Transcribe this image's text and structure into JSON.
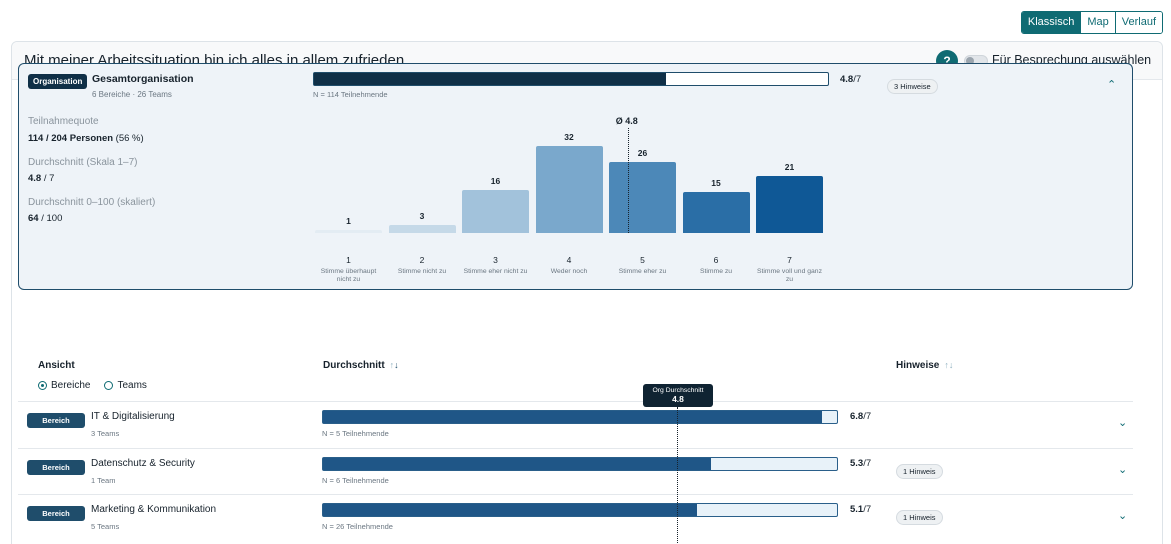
{
  "view_toggle": {
    "classic": "Klassisch",
    "map": "Map",
    "history": "Verlauf",
    "active": "Klassisch"
  },
  "question": "Mit meiner Arbeitssituation bin ich alles in allem zufrieden.",
  "help_symbol": "?",
  "discussion_toggle": {
    "label": "Für Besprechung auswählen",
    "on": false
  },
  "org": {
    "badge": "Organisation",
    "name": "Gesamtorganisation",
    "sub": "6 Bereiche · 26 Teams",
    "bar_fraction": 0.685,
    "n_label": "N = 114 Teilnehmende",
    "score": "4.8",
    "score_max": "/7",
    "hints": "3 Hinweise",
    "stats": [
      {
        "label": "Teilnahmequote",
        "value_bold": "114 / 204 Personen",
        "value_rest": " (56 %)"
      },
      {
        "label": "Durchschnitt (Skala 1–7)",
        "value_bold": "4.8",
        "value_rest": " / 7"
      },
      {
        "label": "Durchschnitt 0–100 (skaliert)",
        "value_bold": "64",
        "value_rest": " / 100"
      }
    ],
    "avg_label": "Ø 4.8",
    "avg_value": 4.8,
    "distribution": [
      {
        "num": "1",
        "count": 1,
        "label": "Stimme überhaupt nicht zu",
        "color": "#e3ecf3"
      },
      {
        "num": "2",
        "count": 3,
        "label": "Stimme nicht zu",
        "color": "#c5d9e8"
      },
      {
        "num": "3",
        "count": 16,
        "label": "Stimme eher nicht zu",
        "color": "#a2c2db"
      },
      {
        "num": "4",
        "count": 32,
        "label": "Weder noch",
        "color": "#7aa8cc"
      },
      {
        "num": "5",
        "count": 26,
        "label": "Stimme eher zu",
        "color": "#4c88b8"
      },
      {
        "num": "6",
        "count": 15,
        "label": "Stimme zu",
        "color": "#2a6ea6"
      },
      {
        "num": "7",
        "count": 21,
        "label": "Stimme voll und ganz zu",
        "color": "#0f5896"
      }
    ]
  },
  "table": {
    "col_view": "Ansicht",
    "col_avg": "Durchschnitt",
    "col_hints": "Hinweise",
    "sort_glyph_up": "↑",
    "sort_glyph_down": "↓",
    "radio_areas": "Bereiche",
    "radio_teams": "Teams",
    "radio_selected": "Bereiche",
    "org_avg_tooltip_title": "Org Durchschnitt",
    "org_avg_tooltip_value": "4.8",
    "rows": [
      {
        "badge": "Bereich",
        "name": "IT & Digitalisierung",
        "sub": "3 Teams",
        "fraction": 0.97,
        "n_label": "N = 5 Teilnehmende",
        "score": "6.8",
        "score_max": "/7",
        "hints": ""
      },
      {
        "badge": "Bereich",
        "name": "Datenschutz & Security",
        "sub": "1 Team",
        "fraction": 0.755,
        "n_label": "N = 6 Teilnehmende",
        "score": "5.3",
        "score_max": "/7",
        "hints": "1 Hinweis"
      },
      {
        "badge": "Bereich",
        "name": "Marketing & Kommunikation",
        "sub": "5 Teams",
        "fraction": 0.727,
        "n_label": "N = 26 Teilnehmende",
        "score": "5.1",
        "score_max": "/7",
        "hints": "1 Hinweis"
      }
    ]
  },
  "colors": {
    "accent": "#0f6b73",
    "bar_dark": "#0f2f47",
    "bar_row": "#1f5687",
    "track": "#e8f2f9"
  }
}
